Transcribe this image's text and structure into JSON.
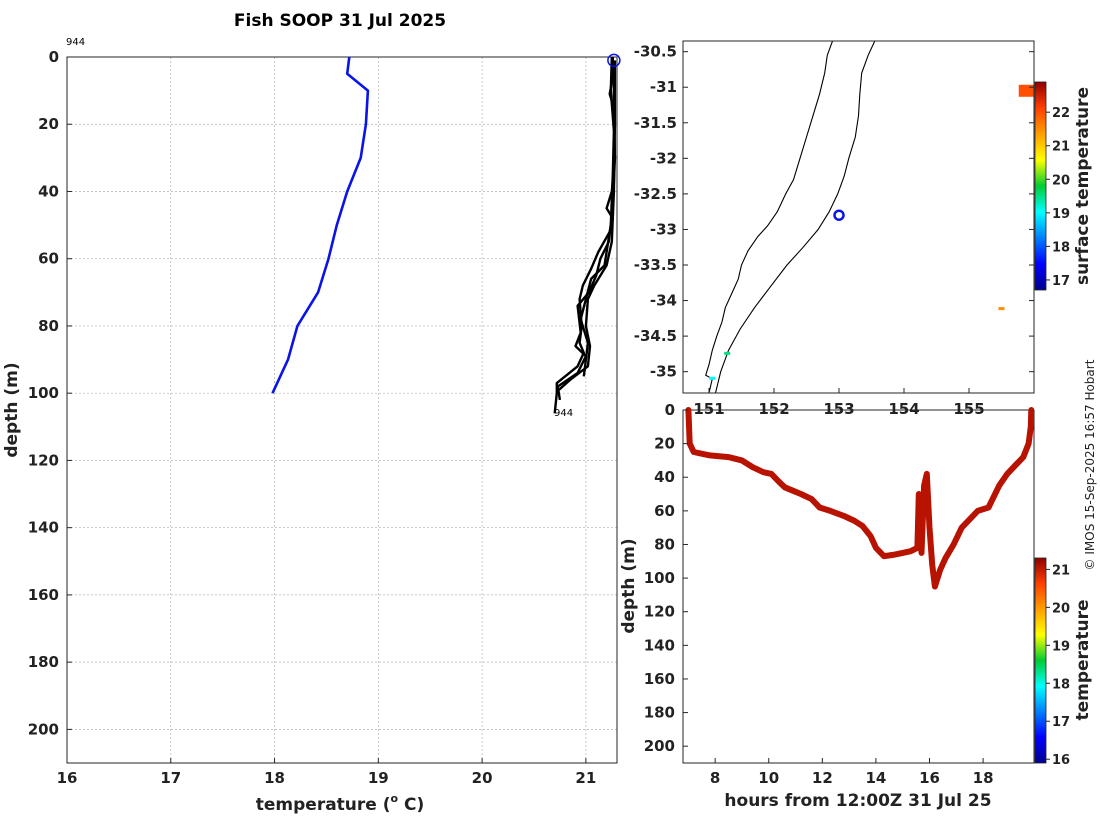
{
  "title": "Fish SOOP 31 Jul 2025",
  "credit": "© IMOS 15-Sep-2025 16:57 Hobart",
  "colors": {
    "climatology": "#0a14e6",
    "profiles": "#000000",
    "background": "#ffffff"
  },
  "chart_data": [
    {
      "id": "profile",
      "type": "line",
      "xlabel": "temperature (",
      "xlabel_sup": "o",
      "xlabel_tail": " C)",
      "ylabel": "depth (m)",
      "xlim": [
        16,
        21.3
      ],
      "ylim": [
        0,
        210
      ],
      "y_reversed": true,
      "xticks": [
        16,
        17,
        18,
        19,
        20,
        21
      ],
      "yticks": [
        0,
        20,
        40,
        60,
        80,
        100,
        120,
        140,
        160,
        180,
        200
      ],
      "grid": true,
      "annotations": [
        {
          "text": "944",
          "x": 16,
          "y": 0,
          "role": "start"
        },
        {
          "text": "944",
          "x": 20.7,
          "y": 106,
          "role": "end"
        }
      ],
      "marker": {
        "x": 21.27,
        "y": 1,
        "shape": "circle",
        "color": "#0a14e6"
      },
      "series": [
        {
          "role": "climatology",
          "color": "#0a14e6",
          "points": [
            [
              18.72,
              0
            ],
            [
              18.7,
              5
            ],
            [
              18.9,
              10
            ],
            [
              18.88,
              20
            ],
            [
              18.83,
              30
            ],
            [
              18.7,
              40
            ],
            [
              18.6,
              50
            ],
            [
              18.52,
              60
            ],
            [
              18.42,
              70
            ],
            [
              18.32,
              75
            ],
            [
              18.22,
              80
            ],
            [
              18.13,
              90
            ],
            [
              17.98,
              100
            ]
          ]
        },
        {
          "role": "profile",
          "color": "#000000",
          "points": [
            [
              21.26,
              0
            ],
            [
              21.26,
              6
            ],
            [
              21.23,
              11
            ],
            [
              21.26,
              14
            ],
            [
              21.27,
              20
            ],
            [
              21.28,
              30
            ],
            [
              21.25,
              40
            ],
            [
              21.2,
              45
            ],
            [
              21.26,
              48
            ],
            [
              21.23,
              52
            ],
            [
              21.12,
              58
            ],
            [
              21.05,
              63
            ],
            [
              20.97,
              68
            ],
            [
              20.94,
              72
            ],
            [
              20.96,
              80
            ],
            [
              20.94,
              85
            ],
            [
              20.98,
              88
            ],
            [
              20.92,
              92
            ],
            [
              20.72,
              97
            ],
            [
              20.72,
              100
            ],
            [
              20.7,
              106
            ]
          ]
        },
        {
          "role": "profile",
          "color": "#000000",
          "points": [
            [
              21.25,
              0
            ],
            [
              21.24,
              10
            ],
            [
              21.27,
              22
            ],
            [
              21.26,
              35
            ],
            [
              21.24,
              50
            ],
            [
              21.2,
              58
            ],
            [
              21.18,
              62
            ],
            [
              21.05,
              66
            ],
            [
              21.0,
              72
            ],
            [
              20.95,
              78
            ],
            [
              21.02,
              85
            ],
            [
              21.0,
              90
            ],
            [
              20.98,
              95
            ]
          ]
        },
        {
          "role": "profile",
          "color": "#000000",
          "points": [
            [
              21.27,
              2
            ],
            [
              21.27,
              15
            ],
            [
              21.28,
              30
            ],
            [
              21.26,
              45
            ],
            [
              21.22,
              55
            ],
            [
              21.14,
              60
            ],
            [
              21.1,
              65
            ],
            [
              21.03,
              70
            ],
            [
              20.92,
              74
            ],
            [
              20.95,
              82
            ],
            [
              20.9,
              86
            ],
            [
              21.0,
              89
            ],
            [
              20.92,
              94
            ],
            [
              20.73,
              98
            ],
            [
              20.75,
              102
            ]
          ]
        },
        {
          "role": "profile",
          "color": "#000000",
          "points": [
            [
              21.28,
              1
            ],
            [
              21.28,
              20
            ],
            [
              21.27,
              40
            ],
            [
              21.25,
              55
            ],
            [
              21.2,
              62
            ],
            [
              21.08,
              68
            ],
            [
              21.02,
              72
            ],
            [
              21.0,
              80
            ],
            [
              21.04,
              86
            ],
            [
              21.02,
              92
            ],
            [
              20.85,
              96
            ],
            [
              20.74,
              99
            ]
          ]
        }
      ]
    },
    {
      "id": "map",
      "type": "scatter",
      "xlim": [
        150.6,
        156.0
      ],
      "ylim": [
        -35.3,
        -30.35
      ],
      "xticks": [
        151,
        152,
        153,
        154,
        155
      ],
      "yticks": [
        -30.5,
        -31,
        -31.5,
        -32,
        -32.5,
        -33,
        -33.5,
        -34,
        -34.5,
        -35
      ],
      "tick_labels_y": [
        "-30.5",
        "-31",
        "-31.5",
        "-32",
        "-32.5",
        "-33",
        "-33.5",
        "-34",
        "-34.5",
        "-35"
      ],
      "colorbar": {
        "label": "surface temperature",
        "range": [
          16.7,
          22.9
        ],
        "ticks": [
          17,
          18,
          19,
          20,
          21,
          22
        ]
      },
      "position_marker": {
        "lon": 153,
        "lat": -32.8,
        "color": "#0a14e6"
      },
      "coastline": [
        [
          151.0,
          -35.3
        ],
        [
          151.05,
          -35.1
        ],
        [
          150.95,
          -35.05
        ],
        [
          151.0,
          -34.9
        ],
        [
          151.05,
          -34.7
        ],
        [
          151.12,
          -34.5
        ],
        [
          151.2,
          -34.3
        ],
        [
          151.25,
          -34.1
        ],
        [
          151.35,
          -33.9
        ],
        [
          151.45,
          -33.7
        ],
        [
          151.5,
          -33.5
        ],
        [
          151.6,
          -33.3
        ],
        [
          151.75,
          -33.1
        ],
        [
          151.9,
          -32.95
        ],
        [
          152.05,
          -32.75
        ],
        [
          152.18,
          -32.5
        ],
        [
          152.3,
          -32.3
        ],
        [
          152.4,
          -32.0
        ],
        [
          152.5,
          -31.7
        ],
        [
          152.6,
          -31.4
        ],
        [
          152.7,
          -31.1
        ],
        [
          152.78,
          -30.8
        ],
        [
          152.82,
          -30.55
        ],
        [
          152.9,
          -30.35
        ]
      ],
      "isobath": [
        [
          151.1,
          -35.3
        ],
        [
          151.18,
          -35.0
        ],
        [
          151.3,
          -34.7
        ],
        [
          151.48,
          -34.4
        ],
        [
          151.7,
          -34.1
        ],
        [
          151.95,
          -33.8
        ],
        [
          152.2,
          -33.5
        ],
        [
          152.45,
          -33.25
        ],
        [
          152.68,
          -33.0
        ],
        [
          152.85,
          -32.75
        ],
        [
          152.98,
          -32.5
        ],
        [
          153.08,
          -32.25
        ],
        [
          153.15,
          -32.0
        ],
        [
          153.25,
          -31.7
        ],
        [
          153.3,
          -31.4
        ],
        [
          153.32,
          -31.1
        ],
        [
          153.35,
          -30.8
        ],
        [
          153.45,
          -30.55
        ],
        [
          153.55,
          -30.35
        ]
      ],
      "sst_patches": [
        {
          "lon": 155.95,
          "lat": -31.05,
          "value": 22.0
        },
        {
          "lon": 155.5,
          "lat": -34.12,
          "value": 21.5
        },
        {
          "lon": 151.28,
          "lat": -34.75,
          "value": 19.5
        },
        {
          "lon": 151.05,
          "lat": -35.1,
          "value": 19.0
        }
      ]
    },
    {
      "id": "section",
      "type": "line",
      "xlabel": "hours from 12:00Z 31 Jul 25",
      "ylabel": "depth (m)",
      "xlim": [
        6.8,
        19.9
      ],
      "ylim": [
        0,
        210
      ],
      "y_reversed": true,
      "xticks": [
        8,
        10,
        12,
        14,
        16,
        18
      ],
      "yticks": [
        0,
        20,
        40,
        60,
        80,
        100,
        120,
        140,
        160,
        180,
        200
      ],
      "colorbar": {
        "label": "temperature",
        "range": [
          15.9,
          21.3
        ],
        "ticks": [
          16,
          17,
          18,
          19,
          20,
          21
        ]
      },
      "series": [
        {
          "name": "",
          "color": "#b81200",
          "points": [
            [
              7.0,
              0
            ],
            [
              7.05,
              20
            ],
            [
              7.2,
              25
            ],
            [
              7.8,
              27
            ],
            [
              8.5,
              28
            ],
            [
              9.0,
              30
            ],
            [
              9.4,
              34
            ],
            [
              9.8,
              37
            ],
            [
              10.1,
              38
            ],
            [
              10.4,
              43
            ],
            [
              10.6,
              46
            ],
            [
              10.9,
              48
            ],
            [
              11.2,
              50
            ],
            [
              11.6,
              53
            ],
            [
              11.9,
              58
            ],
            [
              12.3,
              60
            ],
            [
              12.8,
              63
            ],
            [
              13.2,
              66
            ],
            [
              13.5,
              69
            ],
            [
              13.8,
              75
            ],
            [
              14.0,
              82
            ],
            [
              14.3,
              87
            ],
            [
              14.7,
              86
            ],
            [
              15.0,
              85
            ],
            [
              15.3,
              84
            ],
            [
              15.55,
              82
            ],
            [
              15.6,
              50
            ],
            [
              15.7,
              85
            ],
            [
              15.8,
              45
            ],
            [
              15.9,
              38
            ],
            [
              16.0,
              70
            ],
            [
              16.1,
              92
            ],
            [
              16.2,
              105
            ],
            [
              16.4,
              95
            ],
            [
              16.6,
              88
            ],
            [
              16.9,
              80
            ],
            [
              17.2,
              70
            ],
            [
              17.5,
              65
            ],
            [
              17.8,
              60
            ],
            [
              18.2,
              58
            ],
            [
              18.6,
              45
            ],
            [
              18.9,
              38
            ],
            [
              19.2,
              33
            ],
            [
              19.5,
              28
            ],
            [
              19.7,
              20
            ],
            [
              19.78,
              10
            ],
            [
              19.8,
              0
            ]
          ]
        }
      ]
    }
  ]
}
